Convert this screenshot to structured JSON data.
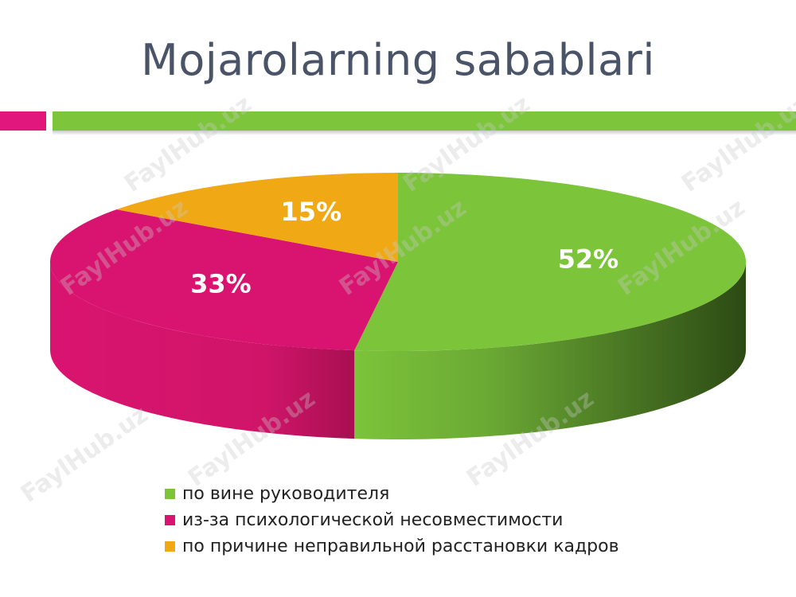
{
  "slide": {
    "title": "Mojarolarning sabablari",
    "accent_colors": {
      "pink": "#e1177b",
      "green": "#7dc63c"
    },
    "watermark": "FaylHub.uz"
  },
  "chart_data": {
    "type": "pie",
    "style": "3d",
    "title": "",
    "categories": [
      "по вине руководителя",
      "из-за психологической несовместимости",
      "по причине неправильной расстановки кадров"
    ],
    "values": [
      52,
      33,
      15
    ],
    "data_labels": [
      "52%",
      "33%",
      "15%"
    ],
    "colors": [
      "#7cc43a",
      "#d91470",
      "#f0a914"
    ],
    "legend_position": "bottom"
  }
}
